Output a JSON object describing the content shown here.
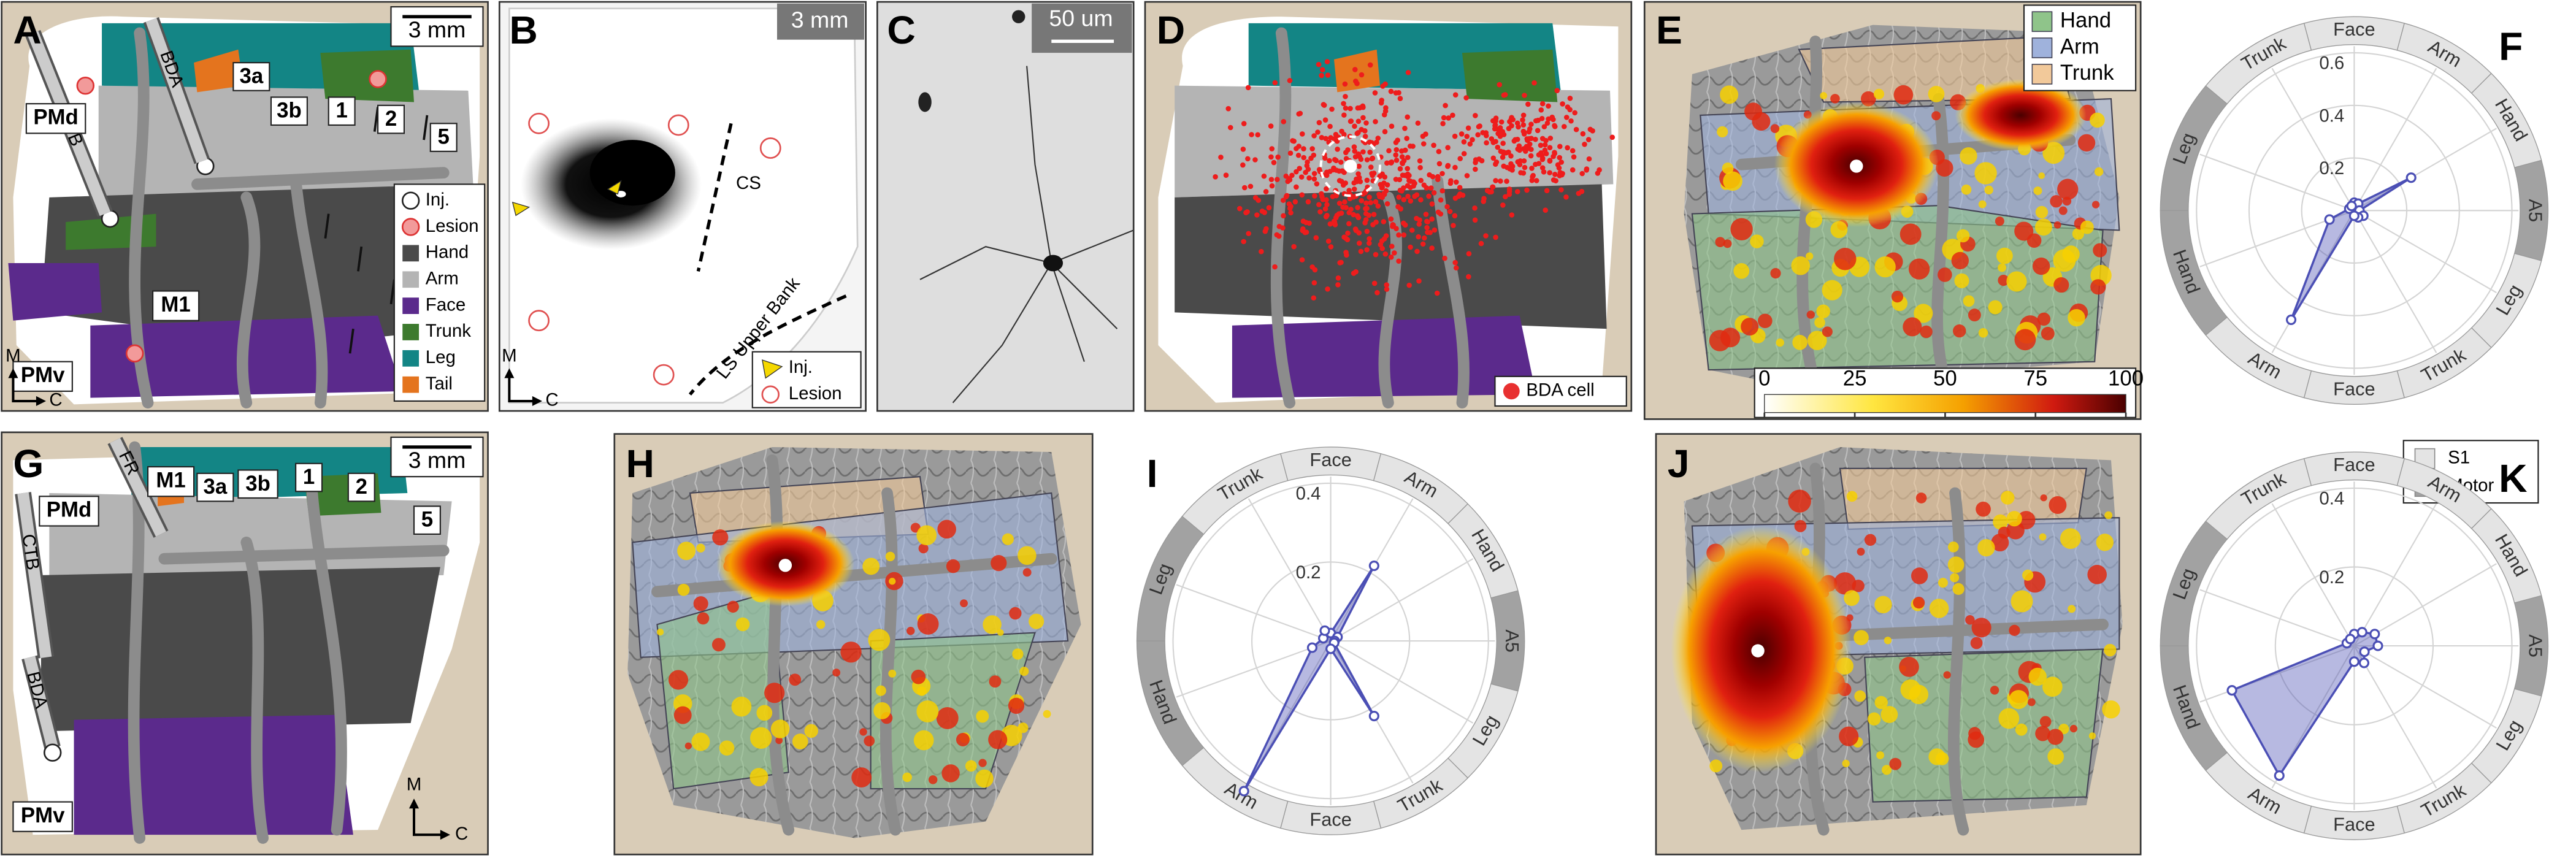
{
  "panels": {
    "A": {
      "letter": "A",
      "scale_bar": "3 mm",
      "labels": [
        "PMd",
        "M1",
        "PMv",
        "3a",
        "3b",
        "1",
        "2",
        "5"
      ],
      "tracers": [
        "FB",
        "BDA"
      ],
      "axes": [
        "M",
        "C"
      ],
      "legend": [
        {
          "name": "Inj.",
          "color": "#ffffff"
        },
        {
          "name": "Lesion",
          "color": "#f29a9a"
        },
        {
          "name": "Hand",
          "color": "#4a4a4a"
        },
        {
          "name": "Arm",
          "color": "#b4b4b4"
        },
        {
          "name": "Face",
          "color": "#5b2a8c"
        },
        {
          "name": "Trunk",
          "color": "#3d7a2e"
        },
        {
          "name": "Leg",
          "color": "#138585"
        },
        {
          "name": "Tail",
          "color": "#e4741e"
        }
      ]
    },
    "B": {
      "letter": "B",
      "scale_bar": "3 mm",
      "labels": [
        "CS",
        "LS Upper Bank"
      ],
      "axes": [
        "M",
        "C"
      ],
      "legend": [
        "Inj.",
        "Lesion"
      ]
    },
    "C": {
      "letter": "C",
      "scale_bar": "50 um"
    },
    "D": {
      "letter": "D",
      "legend": "BDA cell"
    },
    "E": {
      "letter": "E",
      "legend": [
        {
          "name": "Hand",
          "color": "#8fc48a"
        },
        {
          "name": "Arm",
          "color": "#9fb2dc"
        },
        {
          "name": "Trunk",
          "color": "#f2c99a"
        }
      ],
      "colorbar": {
        "ticks": [
          0,
          25,
          50,
          75,
          100
        ]
      }
    },
    "G": {
      "letter": "G",
      "scale_bar": "3 mm",
      "labels": [
        "PMd",
        "M1",
        "PMv",
        "3a",
        "3b",
        "1",
        "2",
        "5"
      ],
      "tracers": [
        "FR",
        "CTB",
        "BDA"
      ],
      "axes": [
        "M",
        "C"
      ]
    },
    "H": {
      "letter": "H"
    },
    "J": {
      "letter": "J"
    }
  },
  "ring_legend": [
    {
      "name": "S1",
      "color": "#e4e4e4"
    },
    {
      "name": "Motor",
      "color": "#a2a2a2"
    }
  ],
  "chart_data": [
    {
      "type": "radar",
      "letter": "F",
      "axes": [
        "Face",
        "Arm",
        "Hand",
        "A5",
        "Leg",
        "Trunk",
        "Face",
        "Arm",
        "Hand",
        "Leg",
        "Trunk"
      ],
      "regions": [
        "S1",
        "S1",
        "S1",
        "Motor",
        "S1",
        "S1",
        "S1",
        "S1",
        "Motor",
        "Motor",
        "S1"
      ],
      "rlim": [
        0,
        0.6
      ],
      "rticks": [
        0.2,
        0.4,
        0.6
      ],
      "series": [
        {
          "color": "#4b4fb5",
          "values": [
            0.03,
            0.03,
            0.25,
            0.02,
            0.04,
            0.03,
            0.02,
            0.48,
            0.1,
            0.02,
            0.02
          ]
        }
      ]
    },
    {
      "type": "radar",
      "letter": "I",
      "axes": [
        "Face",
        "Arm",
        "Hand",
        "A5",
        "Leg",
        "Trunk",
        "Face",
        "Arm",
        "Hand",
        "Leg",
        "Trunk"
      ],
      "regions": [
        "S1",
        "S1",
        "S1",
        "Motor",
        "S1",
        "S1",
        "S1",
        "S1",
        "Motor",
        "Motor",
        "S1"
      ],
      "rlim": [
        0,
        0.4
      ],
      "rticks": [
        0.2,
        0.4
      ],
      "series": [
        {
          "color": "#4b4fb5",
          "values": [
            0.02,
            0.22,
            0.02,
            0.01,
            0.01,
            0.22,
            0.02,
            0.44,
            0.05,
            0.02,
            0.03
          ]
        }
      ]
    },
    {
      "type": "radar",
      "letter": "K",
      "axes": [
        "Face",
        "Arm",
        "Hand",
        "A5",
        "Leg",
        "Trunk",
        "Face",
        "Arm",
        "Hand",
        "Leg",
        "Trunk"
      ],
      "regions": [
        "S1",
        "S1",
        "S1",
        "Motor",
        "S1",
        "S1",
        "S1",
        "S1",
        "Motor",
        "Motor",
        "S1"
      ],
      "rlim": [
        0,
        0.4
      ],
      "rticks": [
        0.2,
        0.4
      ],
      "series": [
        {
          "color": "#4b4fb5",
          "values": [
            0.03,
            0.04,
            0.06,
            0.06,
            0.03,
            0.05,
            0.04,
            0.38,
            0.33,
            0.02,
            0.02
          ]
        }
      ]
    }
  ]
}
